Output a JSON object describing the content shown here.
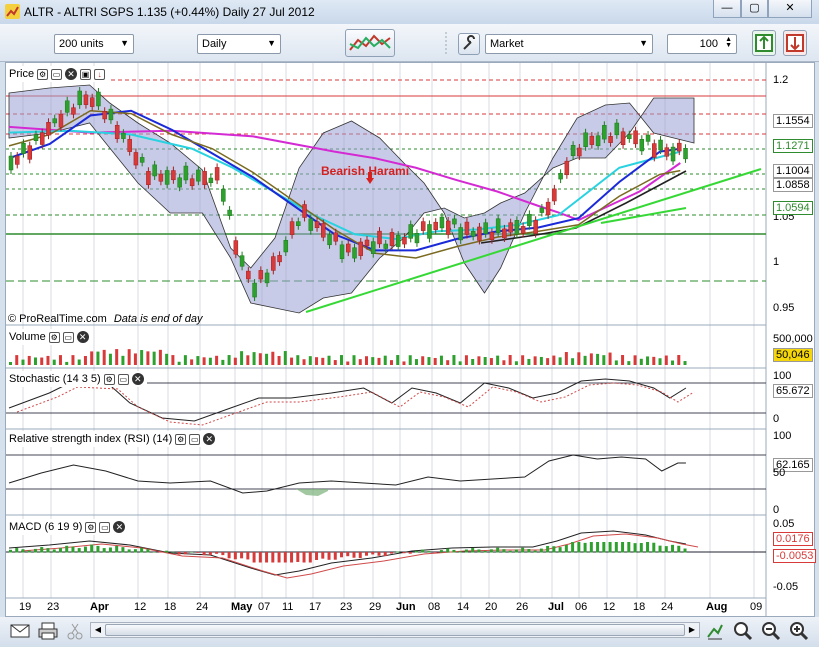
{
  "window": {
    "title": "ALTR - ALTRI SGPS   1.135 (+0.44%)   Daily  27 Jul 2012"
  },
  "toolbar": {
    "units": "200 units",
    "period": "Daily",
    "order_type": "Market",
    "quantity": "100"
  },
  "price_panel": {
    "title": "Price",
    "annotation": "Bearish Harami",
    "source_note": "© ProRealTime.com",
    "eod_note": "Data is end of day",
    "y_ticks": [
      "1.2",
      "1.15",
      "1.1",
      "1.05",
      "1",
      "0.95"
    ],
    "level_boxes": [
      {
        "text": "1.1554",
        "color": "#000000"
      },
      {
        "text": "1.1271",
        "color": "#2e8b2e"
      },
      {
        "text": "1.1004",
        "color": "#000000"
      },
      {
        "text": "1.0858",
        "color": "#000000"
      },
      {
        "text": "1.0594",
        "color": "#2e8b2e"
      }
    ]
  },
  "volume_panel": {
    "title": "Volume",
    "y_top": "500,000",
    "current": "50,046"
  },
  "stoch_panel": {
    "title": "Stochastic (14 3 5)",
    "ticks": [
      "100",
      "0"
    ],
    "current": "65.672"
  },
  "rsi_panel": {
    "title": "Relative strength index (RSI) (14)",
    "ticks": [
      "100",
      "50",
      "0"
    ],
    "current": "62.165"
  },
  "macd_panel": {
    "title": "MACD (6 19 9)",
    "ticks": [
      "0.05",
      "-0.05"
    ],
    "current1": "0.0176",
    "current2": "-0.0053"
  },
  "x_axis": [
    "19",
    "23",
    "Apr",
    "12",
    "18",
    "24",
    "May",
    "07",
    "11",
    "17",
    "23",
    "29",
    "Jun",
    "08",
    "14",
    "20",
    "26",
    "Jul",
    "06",
    "12",
    "18",
    "24",
    "Aug",
    "09"
  ],
  "colors": {
    "up": "#2ea02e",
    "down": "#d83a3a",
    "band": "#9aa0d4",
    "ma_magenta": "#d42ad4",
    "ma_cyan": "#28d2e0",
    "ma_blue": "#1a2ad8",
    "ma_olive": "#7a6a20",
    "trend": "#36d836"
  }
}
